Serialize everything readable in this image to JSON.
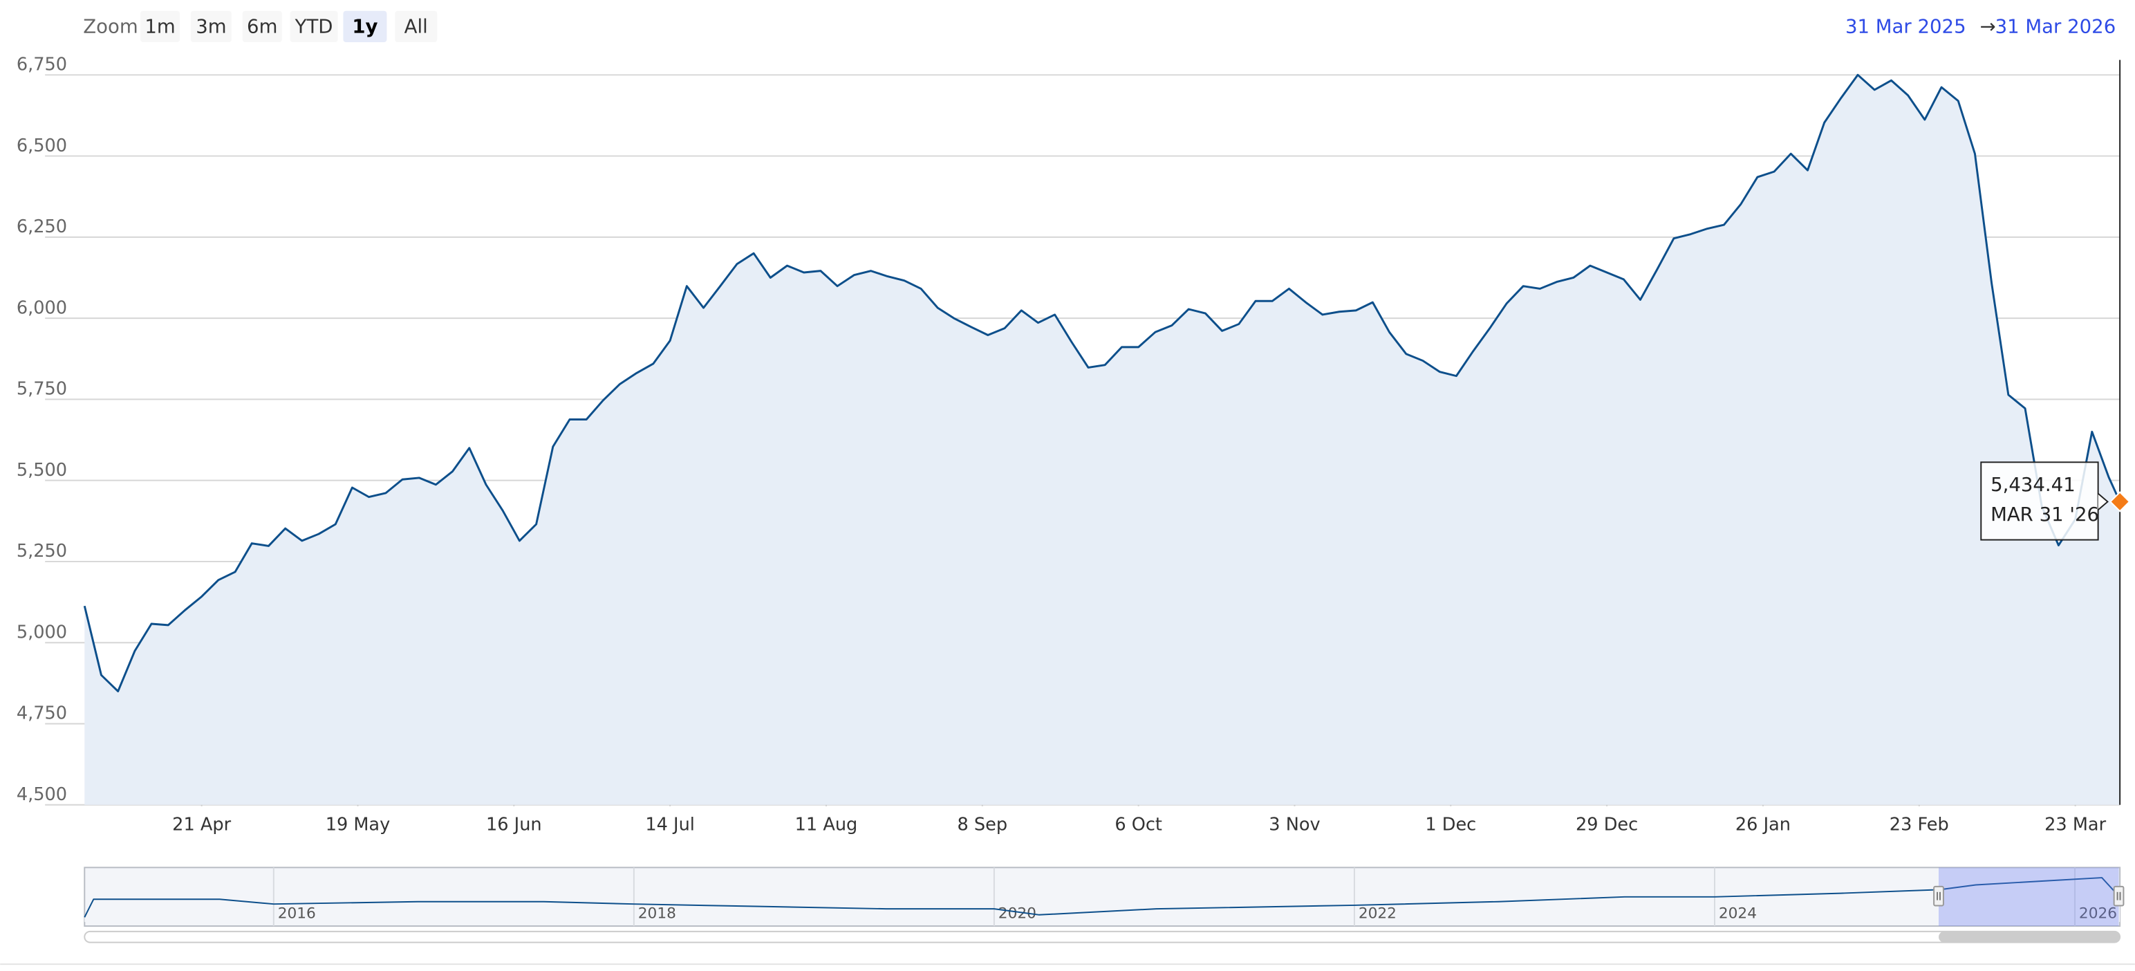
{
  "range_selector": {
    "label": "Zoom",
    "buttons": [
      "1m",
      "3m",
      "6m",
      "YTD",
      "1y",
      "All"
    ],
    "selected": 4
  },
  "date_range": {
    "from": "31 Mar 2025",
    "separator": "→",
    "to": "31 Mar 2026"
  },
  "tooltip": {
    "value_label": "5,434.41",
    "date_label": "MAR 31 '26"
  },
  "chart_data": [
    {
      "type": "line",
      "color": "#0d4f8b",
      "area_color": "#e7eef7",
      "grid": true,
      "xlim": [
        "2025-03-31",
        "2026-03-31"
      ],
      "xticks": [
        {
          "value": "2025-04-21",
          "label": "21 Apr"
        },
        {
          "value": "2025-05-19",
          "label": "19 May"
        },
        {
          "value": "2025-06-16",
          "label": "16 Jun"
        },
        {
          "value": "2025-07-14",
          "label": "14 Jul"
        },
        {
          "value": "2025-08-11",
          "label": "11 Aug"
        },
        {
          "value": "2025-09-08",
          "label": "8 Sep"
        },
        {
          "value": "2025-10-06",
          "label": "6 Oct"
        },
        {
          "value": "2025-11-03",
          "label": "3 Nov"
        },
        {
          "value": "2025-12-01",
          "label": "1 Dec"
        },
        {
          "value": "2025-12-29",
          "label": "29 Dec"
        },
        {
          "value": "2026-01-26",
          "label": "26 Jan"
        },
        {
          "value": "2026-02-23",
          "label": "23 Feb"
        },
        {
          "value": "2026-03-23",
          "label": "23 Mar"
        }
      ],
      "ylim": [
        4500,
        6750
      ],
      "yticks": [
        {
          "value": 4500,
          "label": "4,500"
        },
        {
          "value": 4750,
          "label": "4,750"
        },
        {
          "value": 5000,
          "label": "5,000"
        },
        {
          "value": 5250,
          "label": "5,250"
        },
        {
          "value": 5500,
          "label": "5,500"
        },
        {
          "value": 5750,
          "label": "5,750"
        },
        {
          "value": 6000,
          "label": "6,000"
        },
        {
          "value": 6250,
          "label": "6,250"
        },
        {
          "value": 6500,
          "label": "6,500"
        },
        {
          "value": 6750,
          "label": "6,750"
        }
      ],
      "x": [
        "2025-03-31",
        "2025-04-03",
        "2025-04-06",
        "2025-04-09",
        "2025-04-12",
        "2025-04-15",
        "2025-04-18",
        "2025-04-21",
        "2025-04-24",
        "2025-04-27",
        "2025-04-30",
        "2025-05-03",
        "2025-05-06",
        "2025-05-09",
        "2025-05-12",
        "2025-05-15",
        "2025-05-18",
        "2025-05-21",
        "2025-05-24",
        "2025-05-27",
        "2025-05-30",
        "2025-06-02",
        "2025-06-05",
        "2025-06-08",
        "2025-06-11",
        "2025-06-14",
        "2025-06-17",
        "2025-06-20",
        "2025-06-23",
        "2025-06-26",
        "2025-06-29",
        "2025-07-02",
        "2025-07-05",
        "2025-07-08",
        "2025-07-11",
        "2025-07-14",
        "2025-07-17",
        "2025-07-20",
        "2025-07-23",
        "2025-07-26",
        "2025-07-29",
        "2025-08-01",
        "2025-08-04",
        "2025-08-07",
        "2025-08-10",
        "2025-08-13",
        "2025-08-16",
        "2025-08-19",
        "2025-08-22",
        "2025-08-25",
        "2025-08-28",
        "2025-08-31",
        "2025-09-03",
        "2025-09-06",
        "2025-09-09",
        "2025-09-12",
        "2025-09-15",
        "2025-09-18",
        "2025-09-21",
        "2025-09-24",
        "2025-09-27",
        "2025-09-30",
        "2025-10-03",
        "2025-10-06",
        "2025-10-09",
        "2025-10-12",
        "2025-10-15",
        "2025-10-18",
        "2025-10-21",
        "2025-10-24",
        "2025-10-27",
        "2025-10-30",
        "2025-11-02",
        "2025-11-05",
        "2025-11-08",
        "2025-11-11",
        "2025-11-14",
        "2025-11-17",
        "2025-11-20",
        "2025-11-23",
        "2025-11-26",
        "2025-11-29",
        "2025-12-02",
        "2025-12-05",
        "2025-12-08",
        "2025-12-11",
        "2025-12-14",
        "2025-12-17",
        "2025-12-20",
        "2025-12-23",
        "2025-12-26",
        "2025-12-29",
        "2026-01-01",
        "2026-01-04",
        "2026-01-07",
        "2026-01-10",
        "2026-01-13",
        "2026-01-16",
        "2026-01-19",
        "2026-01-22",
        "2026-01-25",
        "2026-01-28",
        "2026-01-31",
        "2026-02-03",
        "2026-02-06",
        "2026-02-09",
        "2026-02-12",
        "2026-02-15",
        "2026-02-18",
        "2026-02-21",
        "2026-02-24",
        "2026-02-27",
        "2026-03-02",
        "2026-03-05",
        "2026-03-08",
        "2026-03-11",
        "2026-03-14",
        "2026-03-17",
        "2026-03-20",
        "2026-03-23",
        "2026-03-26",
        "2026-03-29",
        "2026-03-31"
      ],
      "values": [
        5113,
        4900,
        4850,
        4974,
        5058,
        5054,
        5100,
        5142,
        5193,
        5218,
        5306,
        5298,
        5352,
        5314,
        5335,
        5365,
        5478,
        5449,
        5461,
        5503,
        5508,
        5487,
        5528,
        5600,
        5487,
        5407,
        5314,
        5365,
        5604,
        5688,
        5688,
        5747,
        5797,
        5831,
        5860,
        5931,
        6099,
        6032,
        6099,
        6167,
        6200,
        6125,
        6162,
        6141,
        6146,
        6099,
        6133,
        6146,
        6129,
        6116,
        6091,
        6032,
        5999,
        5973,
        5948,
        5969,
        6024,
        5986,
        6011,
        5927,
        5848,
        5856,
        5911,
        5911,
        5957,
        5978,
        6028,
        6015,
        5961,
        5982,
        6053,
        6053,
        6091,
        6049,
        6011,
        6020,
        6024,
        6049,
        5957,
        5890,
        5869,
        5835,
        5822,
        5898,
        5969,
        6045,
        6099,
        6091,
        6112,
        6125,
        6162,
        6141,
        6120,
        6057,
        6150,
        6246,
        6259,
        6276,
        6288,
        6351,
        6435,
        6452,
        6507,
        6456,
        6603,
        6679,
        6750,
        6704,
        6733,
        6687,
        6612,
        6712,
        6670,
        6507,
        6108,
        5764,
        5722,
        5420,
        5300,
        5380,
        5650,
        5510,
        5434.41
      ]
    },
    {
      "type": "line",
      "color": "#0d4f8b",
      "area_color": "#f3f5f9",
      "xlim": [
        2014.95,
        2026.25
      ],
      "xticks": [
        2016,
        2018,
        2020,
        2022,
        2024,
        2026
      ],
      "x": [
        2014.95,
        2015.0,
        2015.3,
        2015.7,
        2016.0,
        2016.8,
        2017.5,
        2018.0,
        2018.7,
        2019.4,
        2020.0,
        2020.25,
        2020.9,
        2022.0,
        2022.8,
        2023.5,
        2024.0,
        2024.7,
        2025.25,
        2025.45,
        2025.8,
        2026.15,
        2026.25
      ],
      "values": [
        4100,
        5300,
        5300,
        5300,
        4980,
        5140,
        5140,
        4980,
        4820,
        4660,
        4660,
        4260,
        4660,
        4900,
        5140,
        5460,
        5460,
        5700,
        5940,
        6260,
        6500,
        6740,
        5430
      ]
    }
  ]
}
